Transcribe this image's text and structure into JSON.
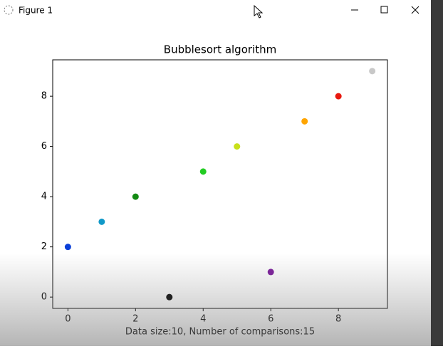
{
  "window": {
    "title": "Figure 1"
  },
  "chart_data": {
    "type": "scatter",
    "title": "Bubblesort algorithm",
    "x_label": "Data size:10, Number of comparisons:15",
    "x": [
      0,
      1,
      2,
      3,
      4,
      5,
      6,
      7,
      8,
      9
    ],
    "values": [
      2,
      3,
      4,
      0,
      5,
      6,
      1,
      7,
      8,
      9
    ],
    "colors": [
      "#0a3fd8",
      "#1199c8",
      "#138a13",
      "#000000",
      "#22cc22",
      "#c8e01a",
      "#7a1a9a",
      "#ffa500",
      "#e8190f",
      "#c8c8c8"
    ],
    "xlim": [
      -0.45,
      9.45
    ],
    "ylim": [
      -0.45,
      9.45
    ],
    "xticks": [
      0,
      2,
      4,
      6,
      8
    ],
    "yticks": [
      0,
      2,
      4,
      6,
      8
    ],
    "grid": false
  }
}
